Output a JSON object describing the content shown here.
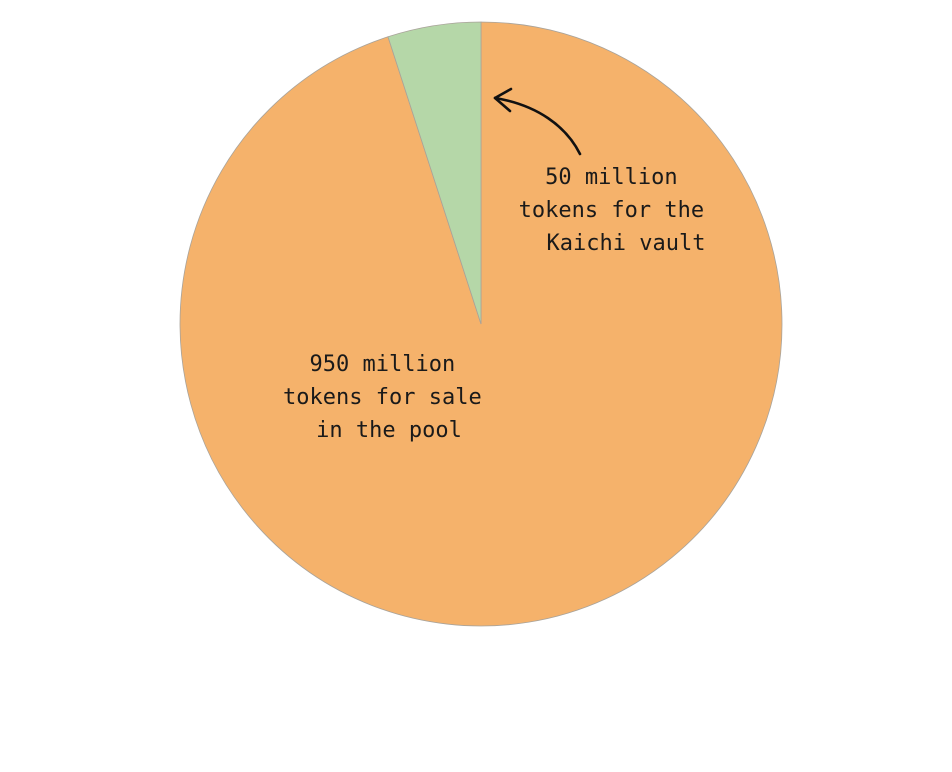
{
  "chart_data": {
    "type": "pie",
    "title": "",
    "start_angle": "top",
    "direction": "clockwise",
    "slices": [
      {
        "value": 950,
        "unit": "million tokens",
        "color": "#f5b26b",
        "label_lines": [
          "950 million",
          "tokens for sale",
          "in the pool"
        ]
      },
      {
        "value": 50,
        "unit": "million tokens",
        "color": "#b5d7a8",
        "label_lines": [
          "50 million",
          "tokens for the",
          "Kaichi vault"
        ]
      }
    ],
    "annotations": [
      {
        "type": "curved-arrow",
        "points_to": "Kaichi vault slice"
      }
    ]
  }
}
